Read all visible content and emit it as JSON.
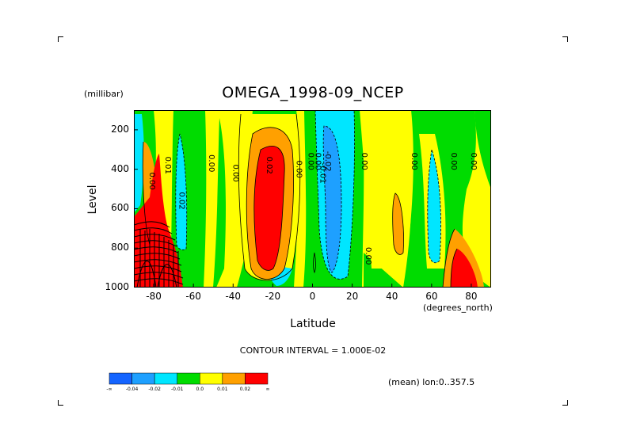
{
  "chart_data": {
    "type": "heatmap",
    "title": "OMEGA_1998-09_NCEP",
    "xlabel": "Latitude",
    "xunits": "(degrees_north)",
    "ylabel": "Level",
    "yunits": "(millibar)",
    "xlim": [
      -90,
      90
    ],
    "ylim": [
      1000,
      100
    ],
    "x_ticks": [
      "-80",
      "-60",
      "-40",
      "-20",
      "0",
      "20",
      "40",
      "60",
      "80"
    ],
    "y_ticks": [
      "200",
      "400",
      "600",
      "800",
      "1000"
    ],
    "contour_interval_text": "CONTOUR INTERVAL = 1.000E-02",
    "mean_text": "(mean) lon:0..357.5",
    "colorbar": {
      "colors": [
        "#1464ff",
        "#1ea0ff",
        "#00e6ff",
        "#00dc00",
        "#ffff00",
        "#ffa000",
        "#ff0000"
      ],
      "labels": [
        "-∞",
        "-0.04",
        "-0.02",
        "-0.01",
        "0.0",
        "0.01",
        "0.02",
        "∞"
      ]
    },
    "contour_labels": [
      {
        "text": "0.00",
        "lat": -82,
        "level": 460
      },
      {
        "text": "0.01",
        "lat": -74,
        "level": 380
      },
      {
        "text": "0.02",
        "lat": -67,
        "level": 560
      },
      {
        "text": "0.00",
        "lat": -52,
        "level": 370
      },
      {
        "text": "0.00",
        "lat": -40,
        "level": 420
      },
      {
        "text": "0.02",
        "lat": -23,
        "level": 380
      },
      {
        "text": "0.00",
        "lat": -8,
        "level": 400
      },
      {
        "text": "0.00",
        "lat": -2,
        "level": 360
      },
      {
        "text": "0.00",
        "lat": 1.5,
        "level": 360
      },
      {
        "text": "-0.01",
        "lat": 4,
        "level": 420
      },
      {
        "text": "-0.02",
        "lat": 6.5,
        "level": 360
      },
      {
        "text": "0.00",
        "lat": 25,
        "level": 360
      },
      {
        "text": "0.00",
        "lat": 27,
        "level": 840
      },
      {
        "text": "0.00",
        "lat": 50,
        "level": 360
      },
      {
        "text": "0.00",
        "lat": 70,
        "level": 360
      },
      {
        "text": "0.00",
        "lat": 80,
        "level": 360
      }
    ]
  }
}
